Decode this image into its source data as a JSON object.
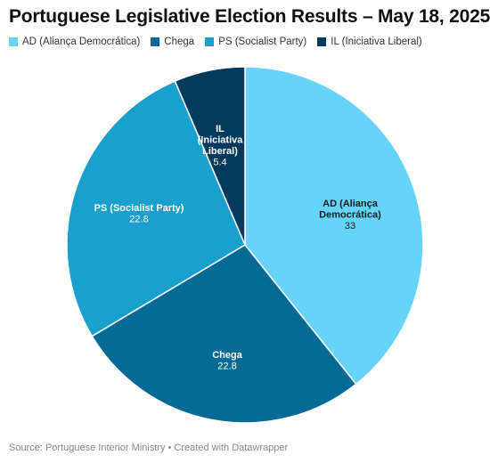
{
  "title": "Portuguese Legislative Election Results – May 18, 2025",
  "legend": [
    {
      "label": "AD (Aliança Democrática)",
      "color": "#66d4f8"
    },
    {
      "label": "Chega",
      "color": "#066a96"
    },
    {
      "label": "PS (Socialist Party)",
      "color": "#1aa0cc"
    },
    {
      "label": "IL (Iniciativa Liberal)",
      "color": "#053a5e"
    }
  ],
  "footer": "Source: Portuguese Interior Ministry • Created with Datawrapper",
  "chart_data": {
    "type": "pie",
    "title": "Portuguese Legislative Election Results – May 18, 2025",
    "slices": [
      {
        "name": "AD (Aliança Democrática)",
        "label_lines": [
          "AD (Aliança",
          "Democrática)"
        ],
        "value": 33,
        "value_label": "33",
        "color": "#66d4f8",
        "label_color": "dark"
      },
      {
        "name": "Chega",
        "label_lines": [
          "Chega"
        ],
        "value": 22.8,
        "value_label": "22.8",
        "color": "#066a96",
        "label_color": "light"
      },
      {
        "name": "PS (Socialist Party)",
        "label_lines": [
          "PS (Socialist Party)"
        ],
        "value": 22.8,
        "value_label": "22.8",
        "color": "#1aa0cc",
        "label_color": "light"
      },
      {
        "name": "IL (Iniciativa Liberal)",
        "label_lines": [
          "IL",
          "(Iniciativa",
          "Liberal)"
        ],
        "value": 5.4,
        "value_label": "5.4",
        "color": "#053a5e",
        "label_color": "light"
      }
    ],
    "start": "12 o'clock",
    "direction": "clockwise",
    "legend_position": "top-left"
  }
}
